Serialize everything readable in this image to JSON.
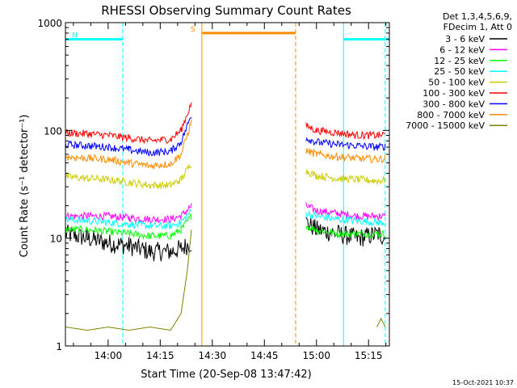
{
  "page": {
    "footer_date": "15-Oct-2021 10:37"
  },
  "chart_data": {
    "type": "line",
    "title": "RHESSI Observing Summary Count Rates",
    "xlabel": "Start Time (20-Sep-08 13:47:42)",
    "ylabel": "Count Rate (s⁻¹ detector⁻¹)",
    "yscale": "log",
    "xlim": [
      13.795,
      15.35
    ],
    "ylim": [
      1,
      1000
    ],
    "x_ticks": [
      {
        "value": 14.0,
        "label": "14:00"
      },
      {
        "value": 14.25,
        "label": "14:15"
      },
      {
        "value": 14.5,
        "label": "14:30"
      },
      {
        "value": 14.75,
        "label": "14:45"
      },
      {
        "value": 15.0,
        "label": "15:00"
      },
      {
        "value": 15.25,
        "label": "15:15"
      }
    ],
    "y_ticks": [
      {
        "value": 1,
        "label": "1"
      },
      {
        "value": 10,
        "label": "10"
      },
      {
        "value": 100,
        "label": "100"
      },
      {
        "value": 1000,
        "label": "1000"
      }
    ],
    "legend_header": [
      "Det 1,3,4,5,6,9,",
      "FDecim 1, Att 0"
    ],
    "legend_position": "right",
    "flags": [
      {
        "label": "N",
        "color": "#00ffff",
        "start": 13.795,
        "end": 14.07,
        "level": 700
      },
      {
        "label": "",
        "color": "#00ffff",
        "start": 15.13,
        "end": 15.35,
        "level": 700
      },
      {
        "label": "S",
        "color": "#ff8c00",
        "start": 14.45,
        "end": 14.9,
        "level": 800
      }
    ],
    "vlines": [
      {
        "x": 14.07,
        "color": "#00ffff",
        "style": "dashed"
      },
      {
        "x": 14.45,
        "color": "#ff8c00",
        "style": "solid"
      },
      {
        "x": 14.9,
        "color": "#ff8c00",
        "style": "dashed"
      },
      {
        "x": 15.13,
        "color": "#00ffff",
        "style": "solid"
      },
      {
        "x": 15.33,
        "color": "#00ffff",
        "style": "dashed"
      }
    ],
    "series": [
      {
        "name": "3 - 6 keV",
        "color": "#000000",
        "x": [
          13.795,
          13.9,
          14.0,
          14.1,
          14.2,
          14.3,
          14.35,
          14.4,
          14.41,
          14.9,
          14.95,
          15.0,
          15.1,
          15.2,
          15.3,
          15.33
        ],
        "y": [
          11,
          10,
          9,
          8.5,
          7.5,
          7.5,
          8,
          9,
          null,
          null,
          14,
          12,
          11,
          10,
          11,
          10
        ]
      },
      {
        "name": "6 - 12 keV",
        "color": "#ff00ff",
        "x": [
          13.795,
          13.9,
          14.0,
          14.1,
          14.2,
          14.3,
          14.35,
          14.4,
          14.41,
          14.9,
          14.95,
          15.0,
          15.1,
          15.2,
          15.3,
          15.33
        ],
        "y": [
          16,
          16,
          16,
          15.5,
          15,
          15,
          16,
          20,
          null,
          null,
          20,
          18,
          17,
          16,
          16,
          16
        ]
      },
      {
        "name": "12 - 25 keV",
        "color": "#00ff00",
        "x": [
          13.795,
          13.9,
          14.0,
          14.1,
          14.2,
          14.3,
          14.35,
          14.4,
          14.41,
          14.9,
          14.95,
          15.0,
          15.1,
          15.2,
          15.3,
          15.33
        ],
        "y": [
          12,
          12,
          11.5,
          11,
          10.5,
          10.5,
          12,
          16,
          null,
          null,
          13,
          12,
          11,
          11,
          11,
          11
        ]
      },
      {
        "name": "25 - 50 keV",
        "color": "#00ffff",
        "x": [
          13.795,
          13.9,
          14.0,
          14.1,
          14.2,
          14.3,
          14.35,
          14.4,
          14.41,
          14.9,
          14.95,
          15.0,
          15.1,
          15.2,
          15.3,
          15.33
        ],
        "y": [
          15,
          14.5,
          14,
          13.5,
          13,
          13,
          14,
          18,
          null,
          null,
          17,
          16,
          15,
          14.5,
          14,
          14
        ]
      },
      {
        "name": "50 - 100 keV",
        "color": "#cccc00",
        "x": [
          13.795,
          13.9,
          14.0,
          14.1,
          14.2,
          14.3,
          14.35,
          14.4,
          14.41,
          14.9,
          14.95,
          15.0,
          15.1,
          15.2,
          15.3,
          15.33
        ],
        "y": [
          37,
          36,
          35,
          33,
          31,
          31,
          35,
          50,
          null,
          null,
          42,
          38,
          36,
          35,
          34,
          35
        ]
      },
      {
        "name": "100 - 300 keV",
        "color": "#ff0000",
        "x": [
          13.795,
          13.9,
          14.0,
          14.1,
          14.2,
          14.3,
          14.35,
          14.4,
          14.41,
          14.9,
          14.95,
          15.0,
          15.1,
          15.2,
          15.3,
          15.33
        ],
        "y": [
          95,
          93,
          90,
          85,
          80,
          83,
          100,
          180,
          null,
          null,
          110,
          100,
          95,
          90,
          90,
          92
        ]
      },
      {
        "name": "300 - 800 keV",
        "color": "#0000ff",
        "x": [
          13.795,
          13.9,
          14.0,
          14.1,
          14.2,
          14.3,
          14.35,
          14.4,
          14.41,
          14.9,
          14.95,
          15.0,
          15.1,
          15.2,
          15.3,
          15.33
        ],
        "y": [
          74,
          72,
          70,
          66,
          62,
          64,
          78,
          140,
          null,
          null,
          85,
          78,
          74,
          72,
          70,
          71
        ]
      },
      {
        "name": "800 - 7000 keV",
        "color": "#ff8c00",
        "x": [
          13.795,
          13.9,
          14.0,
          14.1,
          14.2,
          14.3,
          14.35,
          14.4,
          14.41,
          14.9,
          14.95,
          15.0,
          15.1,
          15.2,
          15.3,
          15.33
        ],
        "y": [
          57,
          55,
          54,
          50,
          47,
          49,
          60,
          120,
          null,
          null,
          65,
          60,
          57,
          55,
          54,
          55
        ]
      },
      {
        "name": "7000 - 15000 keV",
        "color": "#808000",
        "x": [
          13.795,
          13.9,
          14.0,
          14.1,
          14.2,
          14.3,
          14.35,
          14.38,
          14.4,
          14.41,
          15.29,
          15.31,
          15.33
        ],
        "y": [
          1.5,
          1.4,
          1.5,
          1.4,
          1.5,
          1.4,
          2,
          5,
          12,
          null,
          1.5,
          1.8,
          1.5
        ]
      }
    ]
  }
}
